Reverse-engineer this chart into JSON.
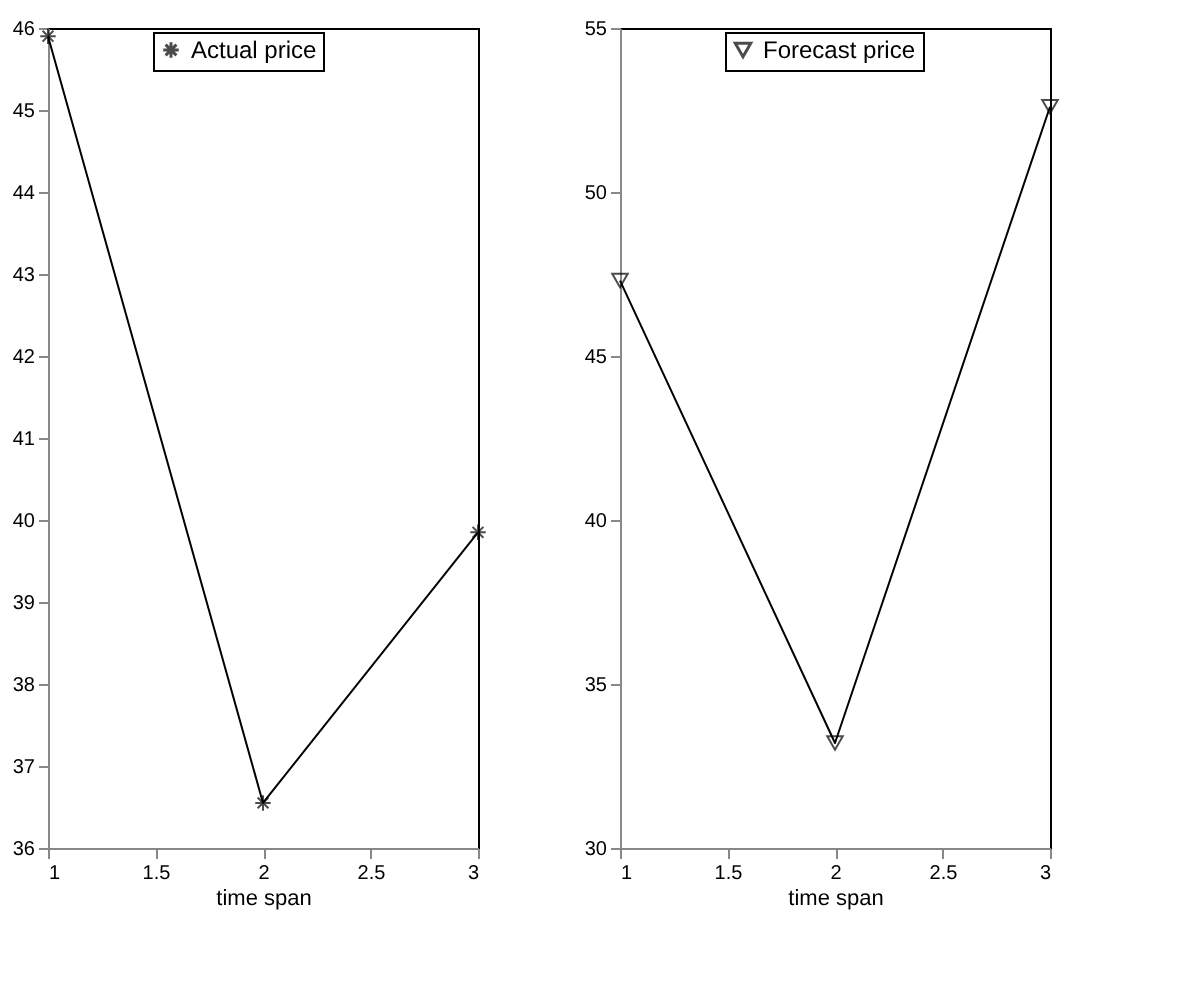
{
  "chart_data": [
    {
      "type": "line",
      "x": [
        1,
        2,
        3
      ],
      "xlim": [
        1,
        3
      ],
      "xticks": [
        1,
        1.5,
        2,
        2.5,
        3
      ],
      "ylim": [
        36,
        46
      ],
      "yticks": [
        36,
        37,
        38,
        39,
        40,
        41,
        42,
        43,
        44,
        45,
        46
      ],
      "xlabel": "time span",
      "legend": "top",
      "grid": false,
      "marker": "cross",
      "series": [
        {
          "name": "Actual price",
          "color": "#000000",
          "values": [
            45.9,
            36.55,
            39.85
          ]
        }
      ]
    },
    {
      "type": "line",
      "x": [
        1,
        2,
        3
      ],
      "xlim": [
        1,
        3
      ],
      "xticks": [
        1,
        1.5,
        2,
        2.5,
        3
      ],
      "ylim": [
        30,
        55
      ],
      "yticks": [
        30,
        35,
        40,
        45,
        50,
        55
      ],
      "xlabel": "time span",
      "legend": "top",
      "grid": false,
      "marker": "triangle",
      "series": [
        {
          "name": "Forecast price",
          "color": "#000000",
          "values": [
            47.3,
            33.2,
            52.6
          ]
        }
      ]
    }
  ]
}
